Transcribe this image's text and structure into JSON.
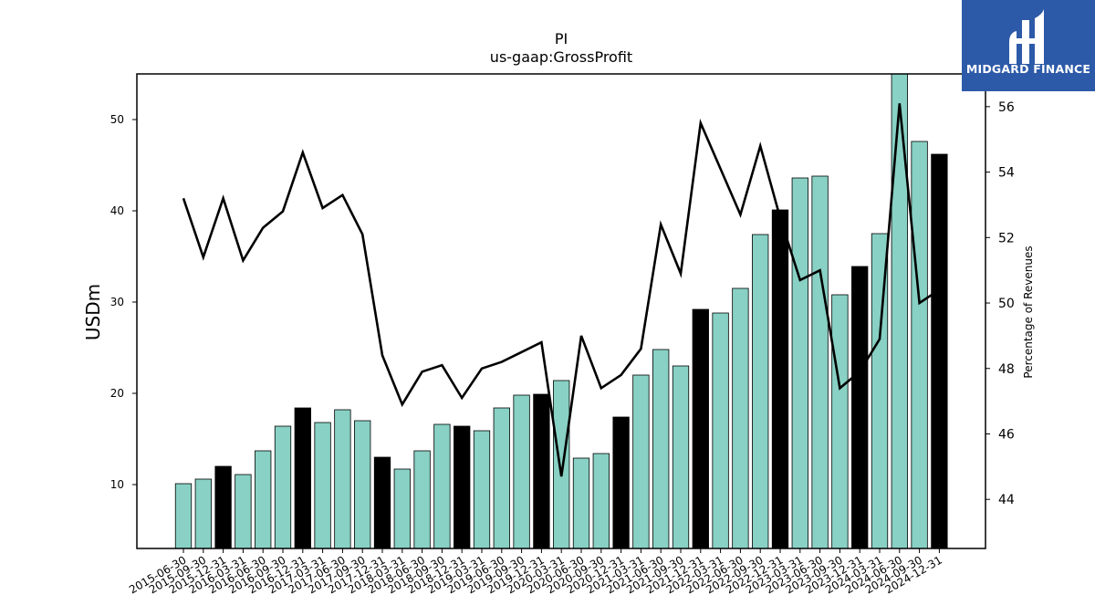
{
  "chart_data": {
    "type": "bar",
    "title": "PI",
    "subtitle": "us-gaap:GrossProfit",
    "ylabel": "USDm",
    "y2label": "Percentage of Revenues",
    "ylim": [
      3,
      55
    ],
    "y2lim": [
      42.5,
      57
    ],
    "yticks": [
      10,
      20,
      30,
      40,
      50
    ],
    "y2ticks": [
      44,
      46,
      48,
      50,
      52,
      54,
      56
    ],
    "colors": {
      "bar": "#88d1c4",
      "bar_year_end": "#000000",
      "line": "#000000",
      "axes": "#000000"
    },
    "categories": [
      "2015-06-30",
      "2015-09-30",
      "2015-12-31",
      "2016-03-31",
      "2016-06-30",
      "2016-09-30",
      "2016-12-31",
      "2017-03-31",
      "2017-06-30",
      "2017-09-30",
      "2017-12-31",
      "2018-03-31",
      "2018-06-30",
      "2018-09-30",
      "2018-12-31",
      "2019-03-31",
      "2019-06-30",
      "2019-09-30",
      "2019-12-31",
      "2020-03-31",
      "2020-06-30",
      "2020-09-30",
      "2020-12-31",
      "2021-03-31",
      "2021-06-30",
      "2021-09-30",
      "2021-12-31",
      "2022-03-31",
      "2022-06-30",
      "2022-09-30",
      "2022-12-31",
      "2023-03-31",
      "2023-06-30",
      "2023-09-30",
      "2023-12-31",
      "2024-03-31",
      "2024-06-30",
      "2024-09-30",
      "2024-12-31"
    ],
    "series": [
      {
        "kind": "bar",
        "values": [
          10.1,
          10.6,
          12.0,
          11.1,
          13.7,
          16.4,
          18.4,
          16.8,
          18.2,
          17.0,
          13.0,
          11.7,
          13.7,
          16.6,
          16.4,
          15.9,
          18.4,
          19.8,
          19.9,
          21.4,
          12.9,
          13.4,
          17.4,
          22.0,
          24.8,
          23.0,
          29.2,
          28.8,
          31.5,
          37.4,
          40.1,
          43.6,
          43.8,
          30.8,
          33.9,
          37.5,
          55.0,
          47.6,
          46.2
        ]
      },
      {
        "kind": "line",
        "axis": "right",
        "values": [
          53.2,
          51.4,
          53.2,
          51.3,
          52.3,
          52.8,
          54.6,
          52.9,
          53.3,
          52.1,
          48.4,
          46.9,
          47.9,
          48.1,
          47.1,
          48.0,
          48.2,
          48.5,
          48.8,
          44.7,
          49.0,
          47.4,
          47.8,
          48.6,
          52.4,
          50.9,
          55.5,
          54.1,
          52.7,
          54.8,
          52.6,
          50.7,
          51.0,
          47.4,
          47.9,
          48.9,
          56.1,
          50.0,
          50.4
        ]
      }
    ]
  },
  "logo": {
    "text": "MIDGARD FINANCE"
  }
}
